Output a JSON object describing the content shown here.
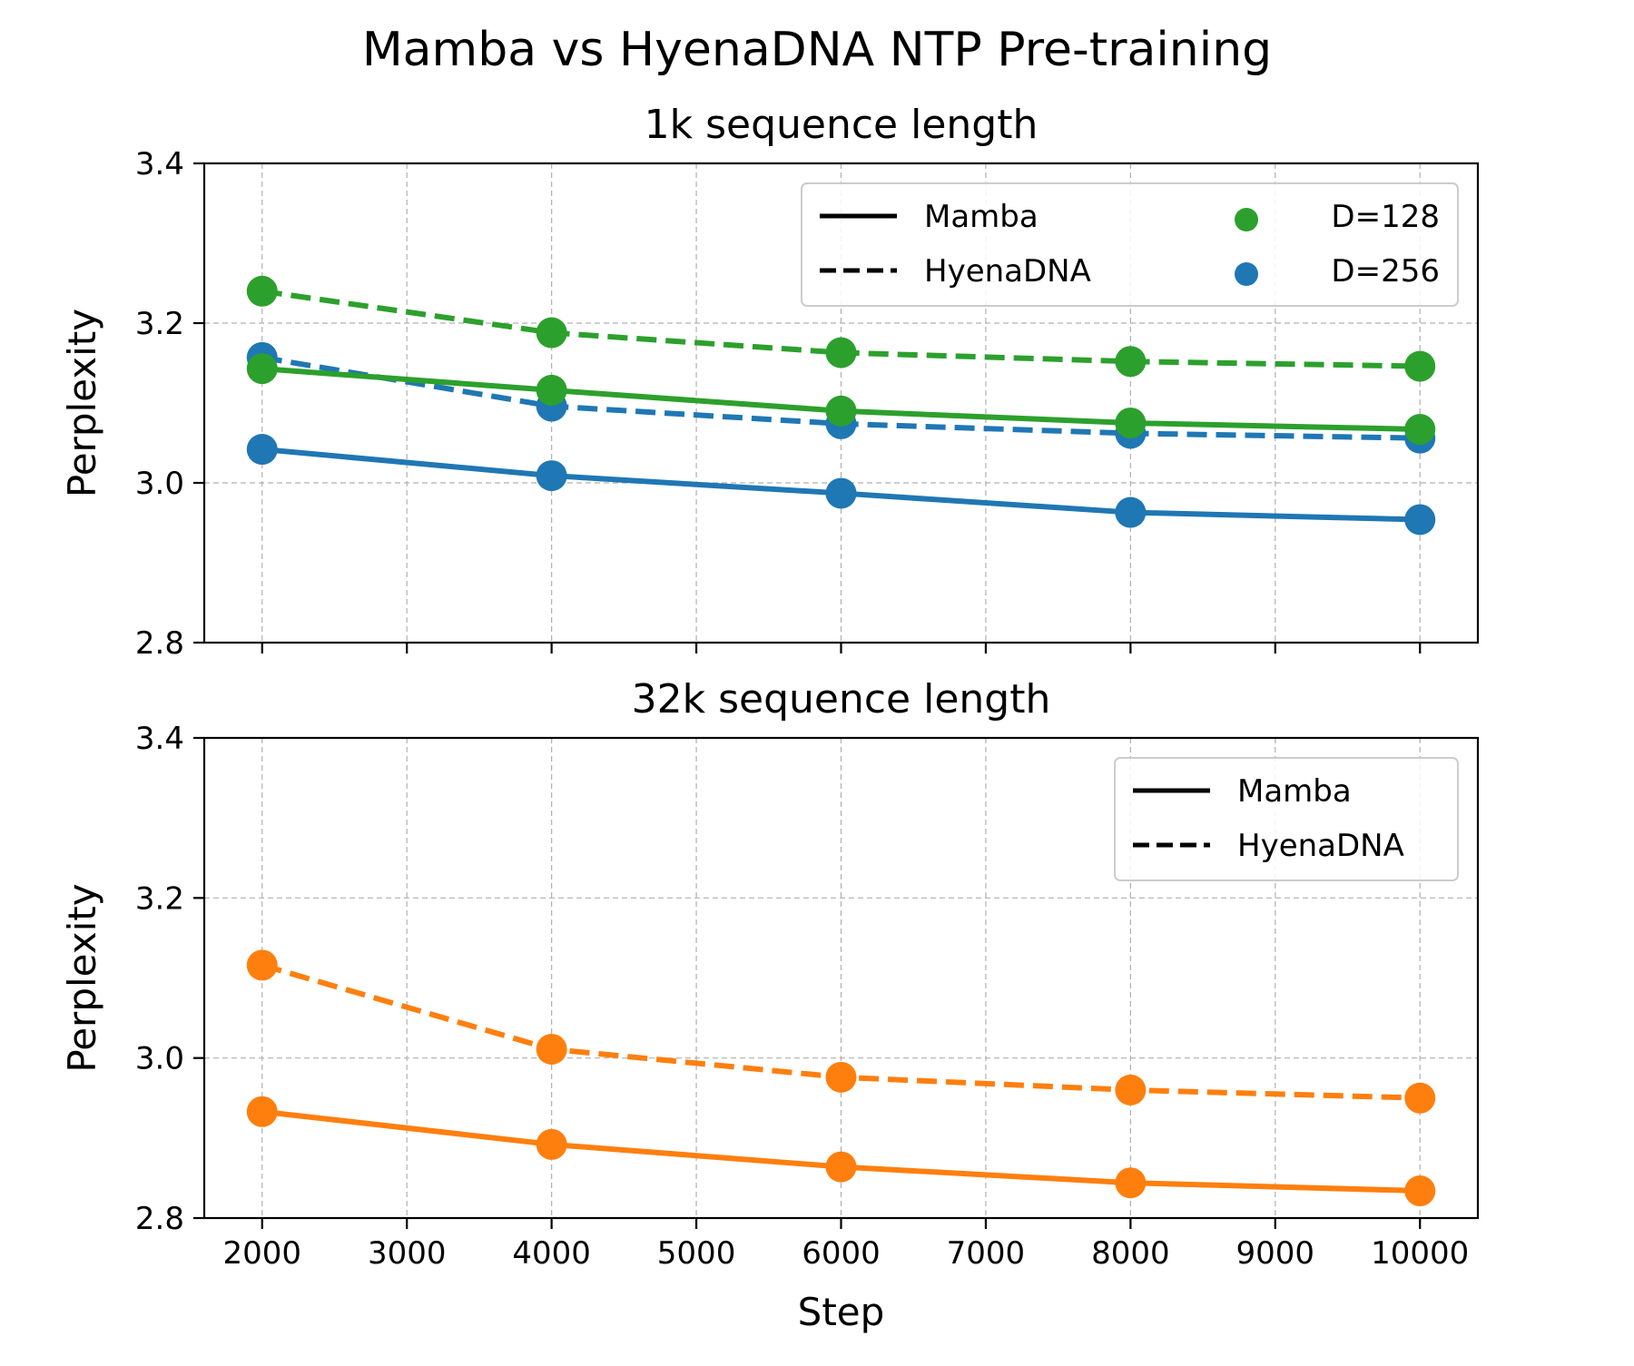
{
  "title": "Mamba vs HyenaDNA NTP Pre-training",
  "colors": {
    "d128": "#2ca02c",
    "d256": "#1f77b4",
    "orange": "#ff7f0e",
    "grid": "#b0b0b0"
  },
  "chart_data": [
    {
      "type": "line",
      "title": "1k sequence length",
      "xlabel": "",
      "ylabel": "Perplexity",
      "x": [
        2000,
        4000,
        6000,
        8000,
        10000
      ],
      "xlim": [
        1600,
        10400
      ],
      "ylim": [
        2.8,
        3.4
      ],
      "xticks": [
        2000,
        3000,
        4000,
        5000,
        6000,
        7000,
        8000,
        9000,
        10000
      ],
      "yticks": [
        "2.8",
        "3.0",
        "3.2",
        "3.4"
      ],
      "show_x_tick_labels": false,
      "grid": true,
      "legend": {
        "placement": "top-right",
        "columns": 2,
        "line_entries": [
          {
            "label": "Mamba",
            "style": "solid"
          },
          {
            "label": "HyenaDNA",
            "style": "dashed"
          }
        ],
        "marker_entries": [
          {
            "label": "D=128",
            "color": "#2ca02c"
          },
          {
            "label": "D=256",
            "color": "#1f77b4"
          }
        ]
      },
      "series": [
        {
          "model": "HyenaDNA",
          "dim": "D=128",
          "style": "dashed",
          "color": "#2ca02c",
          "values": [
            3.24,
            3.188,
            3.163,
            3.152,
            3.146
          ]
        },
        {
          "model": "HyenaDNA",
          "dim": "D=256",
          "style": "dashed",
          "color": "#1f77b4",
          "values": [
            3.157,
            3.096,
            3.074,
            3.062,
            3.056
          ]
        },
        {
          "model": "Mamba",
          "dim": "D=128",
          "style": "solid",
          "color": "#2ca02c",
          "values": [
            3.143,
            3.116,
            3.09,
            3.075,
            3.067
          ]
        },
        {
          "model": "Mamba",
          "dim": "D=256",
          "style": "solid",
          "color": "#1f77b4",
          "values": [
            3.042,
            3.009,
            2.987,
            2.963,
            2.954
          ]
        }
      ]
    },
    {
      "type": "line",
      "title": "32k sequence length",
      "xlabel": "Step",
      "ylabel": "Perplexity",
      "x": [
        2000,
        4000,
        6000,
        8000,
        10000
      ],
      "xlim": [
        1600,
        10400
      ],
      "ylim": [
        2.8,
        3.4
      ],
      "xticks": [
        2000,
        3000,
        4000,
        5000,
        6000,
        7000,
        8000,
        9000,
        10000
      ],
      "yticks": [
        "2.8",
        "3.0",
        "3.2",
        "3.4"
      ],
      "show_x_tick_labels": true,
      "grid": true,
      "legend": {
        "placement": "top-right",
        "columns": 1,
        "line_entries": [
          {
            "label": "Mamba",
            "style": "solid"
          },
          {
            "label": "HyenaDNA",
            "style": "dashed"
          }
        ],
        "marker_entries": []
      },
      "series": [
        {
          "model": "HyenaDNA",
          "style": "dashed",
          "color": "#ff7f0e",
          "values": [
            3.116,
            3.011,
            2.976,
            2.96,
            2.95
          ]
        },
        {
          "model": "Mamba",
          "style": "solid",
          "color": "#ff7f0e",
          "values": [
            2.933,
            2.892,
            2.864,
            2.844,
            2.834
          ]
        }
      ]
    }
  ]
}
